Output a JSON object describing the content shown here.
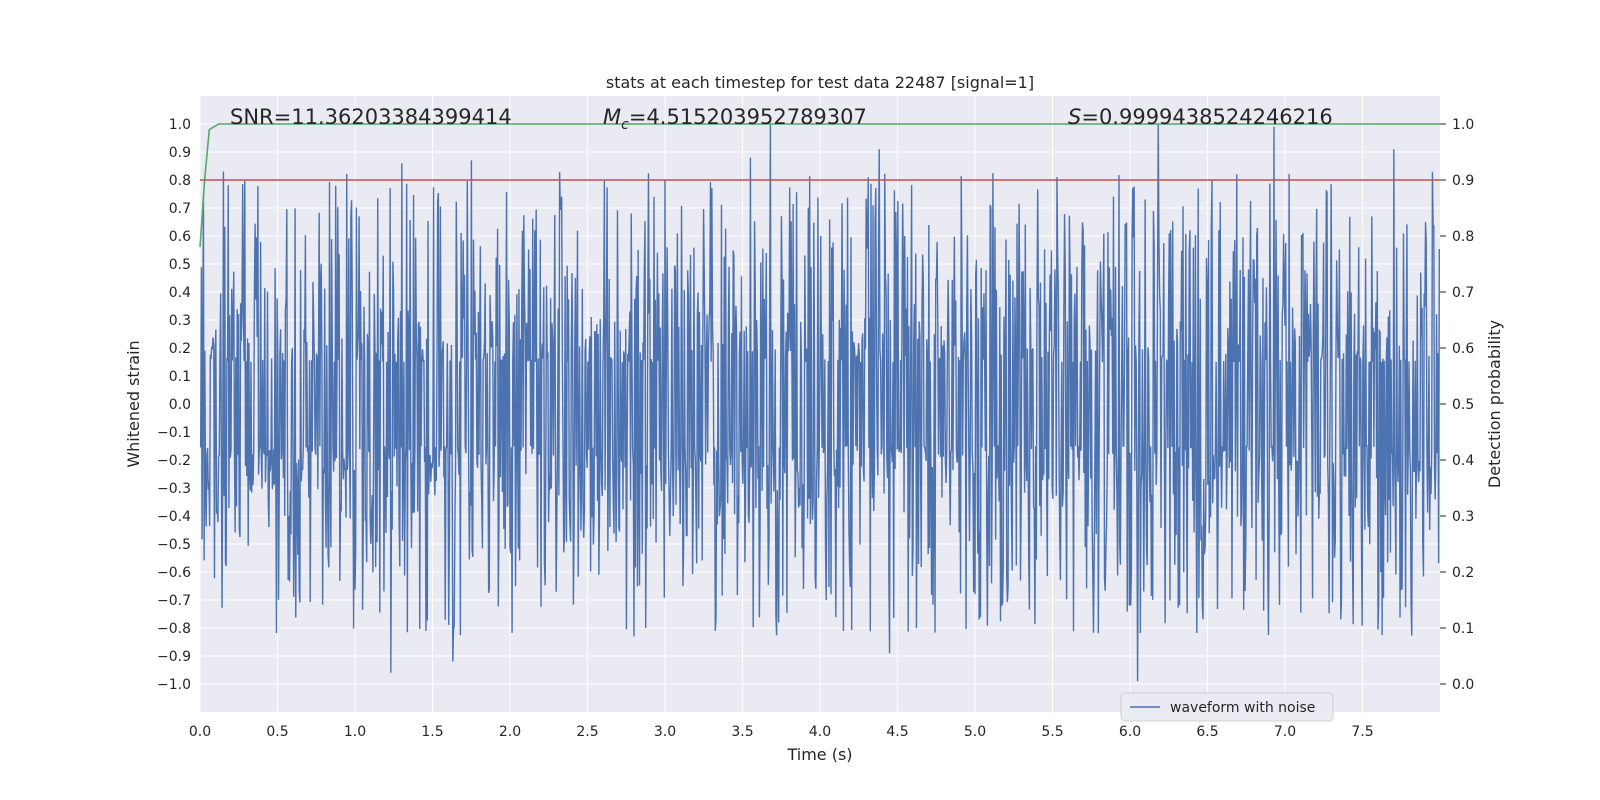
{
  "chart_data": {
    "type": "line",
    "title": "stats at each timestep for test data 22487 [signal=1]",
    "xlabel": "Time (s)",
    "ylabel": "Whitened strain",
    "y2label": "Detection probability",
    "xlim": [
      0,
      8.0
    ],
    "ylim": [
      -1.1,
      1.1
    ],
    "y2lim": [
      -0.05,
      1.05
    ],
    "xticks": [
      "0.0",
      "0.5",
      "1.0",
      "1.5",
      "2.0",
      "2.5",
      "3.0",
      "3.5",
      "4.0",
      "4.5",
      "5.0",
      "5.5",
      "6.0",
      "6.5",
      "7.0",
      "7.5"
    ],
    "xtick_values": [
      0,
      0.5,
      1,
      1.5,
      2,
      2.5,
      3,
      3.5,
      4,
      4.5,
      5,
      5.5,
      6,
      6.5,
      7,
      7.5
    ],
    "yticks": [
      "1.0",
      "0.9",
      "0.8",
      "0.7",
      "0.6",
      "0.5",
      "0.4",
      "0.3",
      "0.2",
      "0.1",
      "0.0",
      "−0.1",
      "−0.2",
      "−0.3",
      "−0.4",
      "−0.5",
      "−0.6",
      "−0.7",
      "−0.8",
      "−0.9",
      "−1.0"
    ],
    "ytick_values": [
      1.0,
      0.9,
      0.8,
      0.7,
      0.6,
      0.5,
      0.4,
      0.3,
      0.2,
      0.1,
      0.0,
      -0.1,
      -0.2,
      -0.3,
      -0.4,
      -0.5,
      -0.6,
      -0.7,
      -0.8,
      -0.9,
      -1.0
    ],
    "y2ticks": [
      "1.0",
      "0.9",
      "0.8",
      "0.7",
      "0.6",
      "0.5",
      "0.4",
      "0.3",
      "0.2",
      "0.1",
      "0.0"
    ],
    "y2tick_values": [
      1.0,
      0.9,
      0.8,
      0.7,
      0.6,
      0.5,
      0.4,
      0.3,
      0.2,
      0.1,
      0.0
    ],
    "annotations": {
      "snr": "SNR=11.36203384399414",
      "mc_prefix": "M",
      "mc_sub": "c",
      "mc_value": "=4.515203952789307",
      "s_prefix": "S",
      "s_value": "=0.9999438524246216"
    },
    "legend": {
      "label": "waveform with noise",
      "position": "lower-right"
    },
    "series": [
      {
        "name": "waveform with noise",
        "axis": "left",
        "color": "#4c72b0",
        "kind": "noise",
        "sample_count": 1800,
        "envelope_peaks": [
          {
            "x": 0.15,
            "y": 0.83
          },
          {
            "x": 1.3,
            "y": 0.86
          },
          {
            "x": 1.75,
            "y": 0.87
          },
          {
            "x": 3.68,
            "y": 1.0
          },
          {
            "x": 3.55,
            "y": 0.88
          },
          {
            "x": 4.38,
            "y": 0.91
          },
          {
            "x": 6.18,
            "y": 1.0
          },
          {
            "x": 6.93,
            "y": 0.99
          },
          {
            "x": 7.7,
            "y": 0.91
          },
          {
            "x": 1.23,
            "y": -0.96
          },
          {
            "x": 4.45,
            "y": -0.89
          },
          {
            "x": 6.05,
            "y": -0.99
          },
          {
            "x": 1.63,
            "y": -0.92
          },
          {
            "x": 2.8,
            "y": -0.83
          }
        ]
      },
      {
        "name": "detection probability",
        "axis": "right",
        "color": "#55a868",
        "x": [
          0.0,
          0.03,
          0.06,
          0.12,
          0.2,
          8.0
        ],
        "y": [
          0.78,
          0.9,
          0.99,
          1.0,
          1.0,
          1.0
        ]
      },
      {
        "name": "threshold",
        "axis": "right",
        "color": "#c44e52",
        "x": [
          0.0,
          8.0
        ],
        "y": [
          0.9,
          0.9
        ]
      }
    ]
  }
}
